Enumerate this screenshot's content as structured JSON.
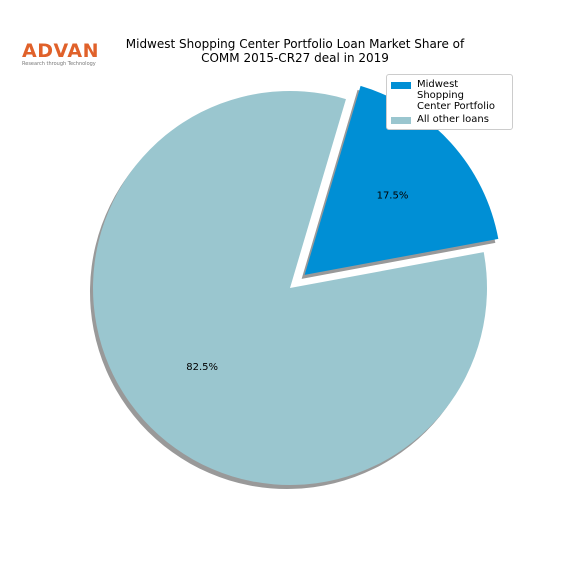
{
  "logo": {
    "name": "ADVAN",
    "tagline": "Research through Technology"
  },
  "chart_data": {
    "type": "pie",
    "title": "Midwest Shopping Center Portfolio Loan Market Share of\nCOMM 2015-CR27 deal in 2019",
    "categories": [
      "Midwest Shopping\nCenter Portfolio",
      "All other loans"
    ],
    "values": [
      17.5,
      82.5
    ],
    "value_labels": [
      "17.5%",
      "82.5%"
    ],
    "colors": [
      "#008fd5",
      "#9ac6cf"
    ],
    "explode": [
      0.1,
      0
    ],
    "shadow": true,
    "legend": "upper right"
  }
}
